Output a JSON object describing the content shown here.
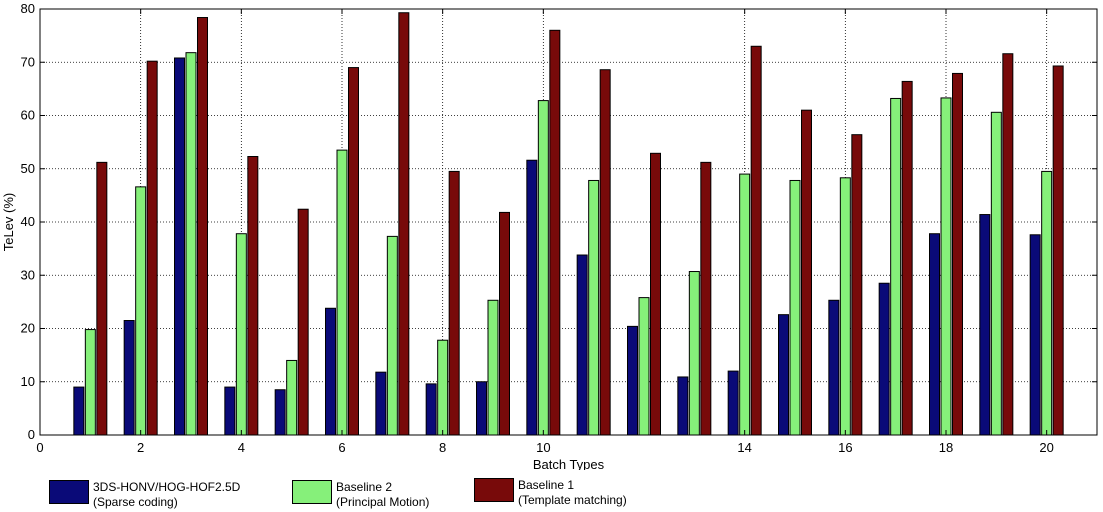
{
  "chart_data": {
    "type": "bar",
    "xlabel": "Batch Types",
    "ylabel": "TeLev (%)",
    "xlim": [
      0,
      21
    ],
    "ylim": [
      0,
      80
    ],
    "x_ticks": [
      0,
      2,
      4,
      6,
      8,
      10,
      14,
      16,
      18,
      20
    ],
    "y_ticks": [
      0,
      10,
      20,
      30,
      40,
      50,
      60,
      70,
      80
    ],
    "grid": true,
    "legend_position": "bottom",
    "categories": [
      1,
      2,
      3,
      4,
      5,
      6,
      7,
      8,
      9,
      10,
      11,
      12,
      13,
      14,
      15,
      16,
      17,
      18,
      19,
      20
    ],
    "series": [
      {
        "name_lines": [
          "3DS-HONV/HOG-HOF2.5D",
          "(Sparse coding)"
        ],
        "color": "#0a0a78",
        "values": [
          9.0,
          21.5,
          70.8,
          9.0,
          8.5,
          23.8,
          11.8,
          9.6,
          10.0,
          51.6,
          33.8,
          20.4,
          10.9,
          12.0,
          22.6,
          25.3,
          28.5,
          37.8,
          41.4,
          37.6
        ]
      },
      {
        "name_lines": [
          "Baseline 2",
          "(Principal Motion)"
        ],
        "color": "#86f07a",
        "values": [
          19.8,
          46.6,
          71.8,
          37.8,
          14.0,
          53.5,
          37.3,
          17.8,
          25.3,
          62.8,
          47.8,
          25.8,
          30.7,
          49.0,
          47.8,
          48.3,
          63.2,
          63.3,
          60.6,
          49.5
        ]
      },
      {
        "name_lines": [
          "Baseline 1",
          "(Template matching)"
        ],
        "color": "#780a0a",
        "values": [
          51.2,
          70.2,
          78.4,
          52.3,
          42.4,
          69.0,
          79.3,
          49.5,
          41.8,
          76.0,
          68.6,
          52.9,
          51.2,
          73.0,
          61.0,
          56.4,
          66.4,
          67.9,
          71.6,
          69.3
        ]
      }
    ]
  }
}
